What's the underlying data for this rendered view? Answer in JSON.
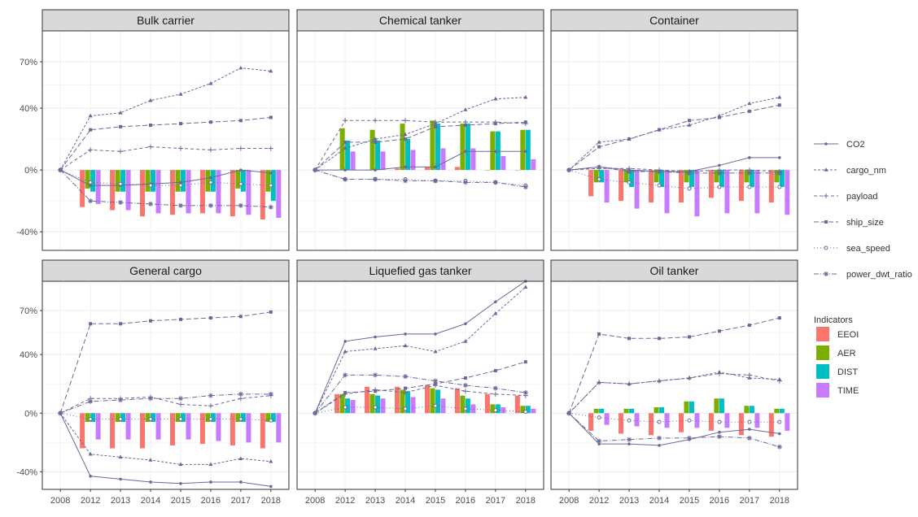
{
  "chart_data": {
    "type": "bar",
    "x": [
      "2008",
      "2012",
      "2013",
      "2014",
      "2015",
      "2016",
      "2017",
      "2018"
    ],
    "bar_categories": [
      "2012",
      "2013",
      "2014",
      "2015",
      "2016",
      "2017",
      "2018"
    ],
    "y_ticks": [
      -40,
      0,
      40,
      70
    ],
    "y_tick_labels": [
      "-40%",
      "0%",
      "40%",
      "70%"
    ],
    "ylim": [
      -52,
      90
    ],
    "grid": true,
    "line_series": [
      {
        "name": "CO2",
        "dash": "",
        "marker": "dot"
      },
      {
        "name": "cargo_nm",
        "dash": "3,2",
        "marker": "triangle"
      },
      {
        "name": "payload",
        "dash": "4,3",
        "marker": "plus"
      },
      {
        "name": "ship_size",
        "dash": "6,3",
        "marker": "square"
      },
      {
        "name": "sea_speed",
        "dash": "1,3",
        "marker": "circle"
      },
      {
        "name": "power_dwt_ratio",
        "dash": "6,2,1,2",
        "marker": "star"
      }
    ],
    "bar_series": [
      {
        "name": "EEOI",
        "color": "#F8766D"
      },
      {
        "name": "AER",
        "color": "#7CAE00"
      },
      {
        "name": "DIST",
        "color": "#00BFC4"
      },
      {
        "name": "TIME",
        "color": "#C77CFF"
      }
    ],
    "legend_title": "Indicators",
    "line_color": "#6a6a9a",
    "panels": [
      {
        "title": "Bulk carrier",
        "lines": {
          "CO2": [
            0,
            -10,
            -10,
            -9,
            -8,
            -5,
            0,
            -2
          ],
          "cargo_nm": [
            0,
            35,
            37,
            45,
            49,
            56,
            66,
            64
          ],
          "payload": [
            0,
            13,
            12,
            15,
            14,
            13,
            14,
            14
          ],
          "ship_size": [
            0,
            26,
            28,
            29,
            30,
            31,
            32,
            34
          ],
          "sea_speed": [
            0,
            -8,
            -9,
            -10,
            -10,
            -8,
            -9,
            -10
          ],
          "power_dwt_ratio": [
            0,
            -20,
            -21,
            -22,
            -23,
            -23,
            -23,
            -24
          ]
        },
        "bars": {
          "EEOI": [
            -24,
            -26,
            -30,
            -29,
            -28,
            -30,
            -32
          ],
          "AER": [
            -12,
            -14,
            -14,
            -14,
            -14,
            -12,
            -14
          ],
          "DIST": [
            -14,
            -14,
            -14,
            -14,
            -14,
            -14,
            -20
          ],
          "TIME": [
            -22,
            -26,
            -28,
            -28,
            -28,
            -29,
            -31
          ]
        }
      },
      {
        "title": "Chemical tanker",
        "lines": {
          "CO2": [
            0,
            0,
            0,
            2,
            2,
            12,
            12,
            12
          ],
          "cargo_nm": [
            0,
            14,
            20,
            23,
            30,
            39,
            46,
            47
          ],
          "payload": [
            0,
            32,
            32,
            32,
            31,
            31,
            31,
            30
          ],
          "ship_size": [
            0,
            18,
            18,
            20,
            28,
            29,
            30,
            31
          ],
          "sea_speed": [
            0,
            -6,
            -6,
            -6,
            -7,
            -7,
            -8,
            -10
          ],
          "power_dwt_ratio": [
            0,
            -6,
            -6,
            -7,
            -7,
            -8,
            -8,
            -11
          ]
        },
        "bars": {
          "EEOI": [
            0,
            0,
            1,
            2,
            2,
            0,
            0
          ],
          "AER": [
            27,
            26,
            30,
            32,
            30,
            25,
            26
          ],
          "DIST": [
            19,
            19,
            20,
            30,
            30,
            25,
            26
          ],
          "TIME": [
            12,
            12,
            13,
            14,
            14,
            9,
            7
          ]
        }
      },
      {
        "title": "Container",
        "lines": {
          "CO2": [
            0,
            2,
            0,
            -1,
            -1,
            3,
            8,
            8
          ],
          "cargo_nm": [
            0,
            18,
            20,
            26,
            29,
            35,
            43,
            47
          ],
          "payload": [
            0,
            1,
            1,
            0,
            -1,
            0,
            0,
            -1
          ],
          "ship_size": [
            0,
            15,
            20,
            26,
            32,
            34,
            38,
            42
          ],
          "sea_speed": [
            0,
            -6,
            -8,
            -10,
            -12,
            -11,
            -11,
            -11
          ],
          "power_dwt_ratio": [
            0,
            2,
            -1,
            -1,
            -2,
            -2,
            -2,
            -2
          ]
        },
        "bars": {
          "EEOI": [
            -17,
            -20,
            -21,
            -21,
            -18,
            -20,
            -21
          ],
          "AER": [
            -8,
            -8,
            -8,
            -8,
            -8,
            -8,
            -8
          ],
          "DIST": [
            -8,
            -11,
            -11,
            -11,
            -11,
            -11,
            -11
          ],
          "TIME": [
            -21,
            -25,
            -28,
            -30,
            -28,
            -28,
            -29
          ]
        }
      },
      {
        "title": "General cargo",
        "lines": {
          "CO2": [
            0,
            -43,
            -45,
            -47,
            -48,
            -47,
            -47,
            -50
          ],
          "cargo_nm": [
            0,
            -28,
            -30,
            -32,
            -35,
            -35,
            -31,
            -33
          ],
          "payload": [
            0,
            10,
            10,
            11,
            6,
            5,
            10,
            12
          ],
          "ship_size": [
            0,
            61,
            61,
            63,
            64,
            65,
            66,
            69
          ],
          "sea_speed": [
            0,
            -4,
            -4,
            -4,
            -4,
            -4,
            -4,
            -5
          ],
          "power_dwt_ratio": [
            0,
            8,
            9,
            10,
            10,
            12,
            13,
            13
          ]
        },
        "bars": {
          "EEOI": [
            -24,
            -24,
            -24,
            -22,
            -21,
            -22,
            -24
          ],
          "AER": [
            -6,
            -6,
            -6,
            -6,
            -6,
            -6,
            -6
          ],
          "DIST": [
            -6,
            -6,
            -6,
            -6,
            -6,
            -6,
            -6
          ],
          "TIME": [
            -18,
            -18,
            -18,
            -18,
            -19,
            -20,
            -20
          ]
        }
      },
      {
        "title": "Liquefied gas tanker",
        "lines": {
          "CO2": [
            0,
            49,
            52,
            54,
            54,
            61,
            76,
            90
          ],
          "cargo_nm": [
            0,
            42,
            44,
            46,
            42,
            49,
            68,
            86
          ],
          "payload": [
            0,
            13,
            16,
            14,
            19,
            15,
            13,
            12
          ],
          "ship_size": [
            0,
            14,
            15,
            17,
            20,
            24,
            29,
            35
          ],
          "sea_speed": [
            0,
            4,
            4,
            3,
            5,
            3,
            2,
            1
          ],
          "power_dwt_ratio": [
            0,
            26,
            26,
            25,
            22,
            19,
            17,
            14
          ]
        },
        "bars": {
          "EEOI": [
            13,
            18,
            18,
            19,
            17,
            13,
            12
          ],
          "AER": [
            13,
            13,
            16,
            17,
            12,
            6,
            5
          ],
          "DIST": [
            10,
            12,
            15,
            16,
            10,
            6,
            5
          ],
          "TIME": [
            9,
            10,
            11,
            10,
            6,
            4,
            3
          ]
        }
      },
      {
        "title": "Oil tanker",
        "lines": {
          "CO2": [
            0,
            -21,
            -21,
            -22,
            -18,
            -13,
            -11,
            -14
          ],
          "cargo_nm": [
            0,
            21,
            20,
            22,
            24,
            28,
            24,
            23
          ],
          "payload": [
            0,
            21,
            20,
            22,
            24,
            27,
            26,
            22
          ],
          "ship_size": [
            0,
            54,
            51,
            51,
            52,
            56,
            60,
            65
          ],
          "sea_speed": [
            0,
            -3,
            -5,
            -6,
            -5,
            -6,
            -6,
            -6
          ],
          "power_dwt_ratio": [
            0,
            -19,
            -18,
            -17,
            -17,
            -16,
            -17,
            -23
          ]
        },
        "bars": {
          "EEOI": [
            -12,
            -14,
            -15,
            -13,
            -12,
            -15,
            -16
          ],
          "AER": [
            3,
            3,
            4,
            8,
            10,
            5,
            3
          ],
          "DIST": [
            3,
            3,
            4,
            8,
            10,
            5,
            3
          ],
          "TIME": [
            -8,
            -9,
            -10,
            -10,
            -10,
            -10,
            -12
          ]
        }
      }
    ]
  }
}
